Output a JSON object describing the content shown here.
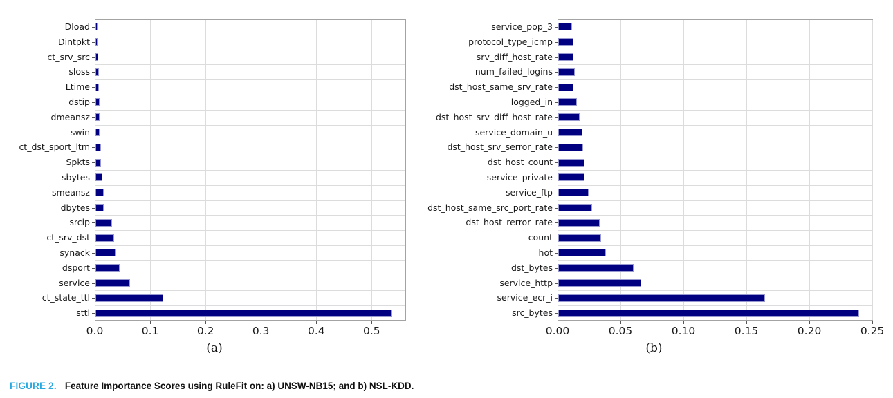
{
  "caption": {
    "label": "FIGURE 2.",
    "text": "Feature Importance Scores using RuleFit on: a) UNSW-NB15; and b) NSL-KDD."
  },
  "colors": {
    "bar_fill": "#000080",
    "bar_edge": "#9898d0",
    "grid": "#dcdcdc",
    "spine": "#a3a3a3",
    "tick": "#555555",
    "caption_accent": "#29a8e0",
    "text": "#1a1a1a"
  },
  "chart_data": [
    {
      "type": "bar",
      "orientation": "horizontal",
      "subcaption": "(a)",
      "dataset": "UNSW-NB15",
      "title": "",
      "xlabel": "",
      "ylabel": "",
      "grid": true,
      "legend": "none",
      "xlim": [
        0,
        0.562
      ],
      "x_tick_values": [
        0.0,
        0.1,
        0.2,
        0.3,
        0.4,
        0.5
      ],
      "x_tick_labels": [
        "0.0",
        "0.1",
        "0.2",
        "0.3",
        "0.4",
        "0.5"
      ],
      "categories": [
        "Dload",
        "Dintpkt",
        "ct_srv_src",
        "sloss",
        "Ltime",
        "dstip",
        "dmeansz",
        "swin",
        "ct_dst_sport_ltm",
        "Spkts",
        "sbytes",
        "smeansz",
        "dbytes",
        "srcip",
        "ct_srv_dst",
        "synack",
        "dsport",
        "service",
        "ct_state_ttl",
        "sttl"
      ],
      "values": [
        0.004,
        0.004,
        0.005,
        0.006,
        0.006,
        0.007,
        0.007,
        0.008,
        0.01,
        0.01,
        0.012,
        0.015,
        0.015,
        0.03,
        0.034,
        0.036,
        0.044,
        0.063,
        0.122,
        0.535
      ]
    },
    {
      "type": "bar",
      "orientation": "horizontal",
      "subcaption": "(b)",
      "dataset": "NSL-KDD",
      "title": "",
      "xlabel": "",
      "ylabel": "",
      "grid": true,
      "legend": "none",
      "xlim": [
        0,
        0.2505
      ],
      "x_tick_values": [
        0.0,
        0.05,
        0.1,
        0.15,
        0.2,
        0.25
      ],
      "x_tick_labels": [
        "0.00",
        "0.05",
        "0.10",
        "0.15",
        "0.20",
        "0.25"
      ],
      "categories": [
        "service_pop_3",
        "protocol_type_icmp",
        "srv_diff_host_rate",
        "num_failed_logins",
        "dst_host_same_srv_rate",
        "logged_in",
        "dst_host_srv_diff_host_rate",
        "service_domain_u",
        "dst_host_srv_serror_rate",
        "dst_host_count",
        "service_private",
        "service_ftp",
        "dst_host_same_src_port_rate",
        "dst_host_rerror_rate",
        "count",
        "hot",
        "dst_bytes",
        "service_http",
        "service_ecr_i",
        "src_bytes"
      ],
      "values": [
        0.011,
        0.012,
        0.012,
        0.013,
        0.012,
        0.015,
        0.017,
        0.019,
        0.02,
        0.021,
        0.021,
        0.024,
        0.027,
        0.033,
        0.034,
        0.038,
        0.06,
        0.066,
        0.164,
        0.239
      ]
    }
  ]
}
